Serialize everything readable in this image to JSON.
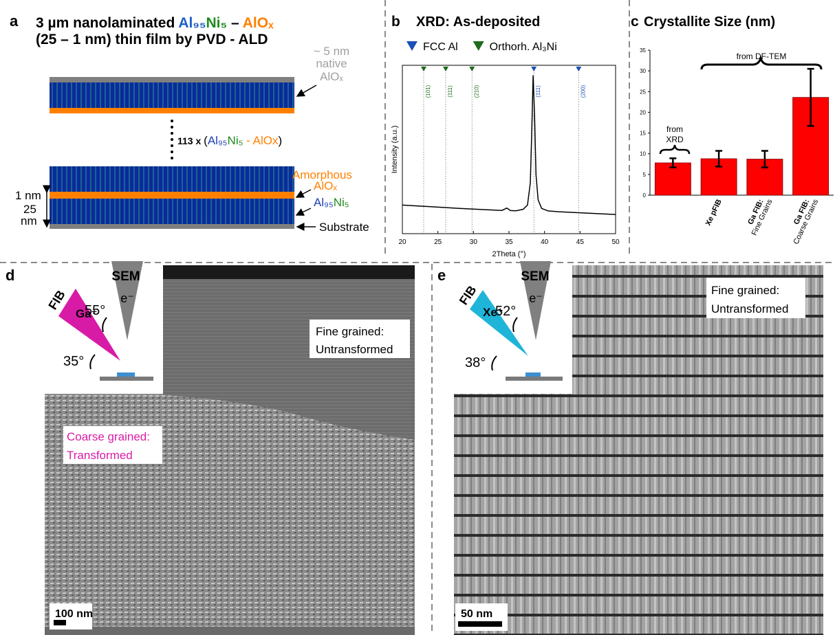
{
  "panel_a": {
    "label": "a",
    "title_line1": {
      "lead": "3 µm nanolaminated ",
      "al": "Al₉₅",
      "ni": "Ni₅",
      "dash": " – ",
      "alox": "AlOₓ"
    },
    "title_line2": "(25 – 1 nm) thin film by PVD - ALD",
    "repeat_label": {
      "count": "113 x ",
      "open": "(",
      "al": "Al₉₅",
      "ni": "Ni₅",
      "dash": " - ",
      "alox": "AlOx",
      "close": ")"
    },
    "native_label": [
      "~ 5 nm",
      "native",
      "AlOₓ"
    ],
    "amorphous_label": [
      "Amorphous",
      "AlOₓ"
    ],
    "layer_label": {
      "al": "Al₉₅",
      "ni": "Ni₅"
    },
    "substrate_label": "Substrate",
    "thickness_1nm": "1 nm",
    "thickness_25nm": [
      "25",
      "nm"
    ]
  },
  "chart_data": [
    {
      "type": "line",
      "label": "b",
      "title": "XRD: As-deposited",
      "xlabel": "2Theta (°)",
      "ylabel": "Intensity (a.u.)",
      "x": [
        20,
        22,
        24,
        26,
        28,
        30,
        32,
        34,
        34.7,
        35.2,
        36,
        37,
        37.6,
        38,
        38.2,
        38.4,
        38.6,
        38.8,
        39.1,
        39.6,
        40.5,
        42,
        44,
        46,
        48,
        50
      ],
      "values": [
        17,
        16.5,
        16,
        15.5,
        15,
        14.6,
        14.2,
        13.8,
        15.2,
        13.7,
        13.6,
        14.5,
        17,
        30,
        60,
        94,
        70,
        35,
        20,
        15,
        13.5,
        13,
        12.6,
        12.2,
        11.8,
        11.4
      ],
      "color": "#000000",
      "xlim": [
        20,
        50
      ],
      "xticks": [
        20,
        25,
        30,
        35,
        40,
        45,
        50
      ],
      "ylim": [
        0,
        100
      ],
      "legend": [
        {
          "name": "FCC Al",
          "color": "#1c4fb8"
        },
        {
          "name": "Orthorh. Al₃Ni",
          "color": "#1e6b1e"
        }
      ],
      "peaks": [
        {
          "label": "(101)",
          "x": 23.0,
          "color": "#1e6b1e"
        },
        {
          "label": "(111)",
          "x": 26.1,
          "color": "#1e6b1e"
        },
        {
          "label": "(210)",
          "x": 29.8,
          "color": "#1e6b1e"
        },
        {
          "label": "(111)",
          "x": 38.5,
          "color": "#1c4fb8"
        },
        {
          "label": "(200)",
          "x": 44.8,
          "color": "#1c4fb8"
        }
      ]
    },
    {
      "type": "bar",
      "label": "c",
      "title": "Crystallite Size (nm)",
      "categories": [
        null,
        "Xe pFIB",
        "Ga FIB:",
        "Ga FIB:"
      ],
      "category_sublabels": [
        null,
        null,
        "Fine Grains",
        "Coarse Grains"
      ],
      "values": [
        7.8,
        8.8,
        8.7,
        23.6
      ],
      "errors": [
        1.1,
        1.9,
        2.0,
        6.9
      ],
      "color": "#ff0000",
      "ylim": [
        0,
        35
      ],
      "yticks": [
        0,
        5,
        10,
        15,
        20,
        25,
        30,
        35
      ],
      "annotations": {
        "dftem": "from DF-TEM",
        "xrd": [
          "from",
          "XRD"
        ]
      }
    }
  ],
  "panel_d": {
    "label": "d",
    "sem": "SEM",
    "electron": "e⁻",
    "fib": "FIB",
    "ion": "Ga⁺",
    "angle_top": "55°",
    "angle_bottom": "35°",
    "region_fine": [
      "Fine grained:",
      "Untransformed"
    ],
    "region_coarse": [
      "Coarse grained:",
      "Transformed"
    ],
    "scale_bar": "100 nm"
  },
  "panel_e": {
    "label": "e",
    "sem": "SEM",
    "electron": "e⁻",
    "fib": "FIB",
    "ion": "Xe⁺",
    "angle_top": "52°",
    "angle_bottom": "38°",
    "region_fine": [
      "Fine grained:",
      "Untransformed"
    ],
    "scale_bar": "50 nm"
  }
}
